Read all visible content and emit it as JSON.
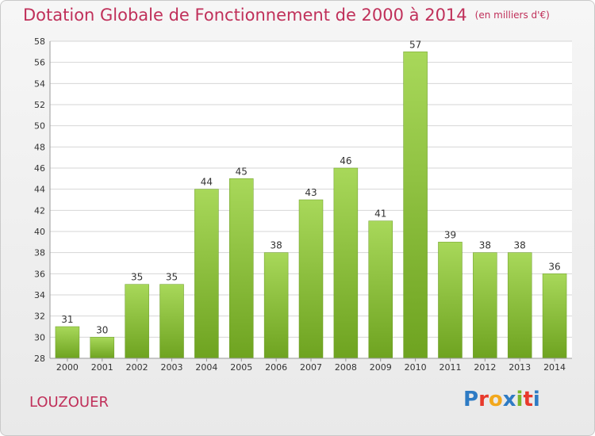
{
  "title": "Dotation Globale de Fonctionnement de 2000 à 2014",
  "subtitle": "(en milliers d'€)",
  "commune": "LOUZOUER",
  "logo": {
    "text": "Proxiti",
    "colors": [
      "#2e7bc4",
      "#e8392b",
      "#f2a81d",
      "#2e7bc4",
      "#7ab72b",
      "#e8392b",
      "#2e7bc4"
    ]
  },
  "chart_data": {
    "type": "bar",
    "categories": [
      "2000",
      "2001",
      "2002",
      "2003",
      "2004",
      "2005",
      "2006",
      "2007",
      "2008",
      "2009",
      "2010",
      "2011",
      "2012",
      "2013",
      "2014"
    ],
    "values": [
      31,
      30,
      35,
      35,
      44,
      45,
      38,
      43,
      46,
      41,
      57,
      39,
      38,
      38,
      36
    ],
    "data_labels": [
      "31",
      "30",
      "35",
      "35",
      "44",
      "45",
      "38",
      "43",
      "46",
      "41",
      "57",
      "39",
      "38",
      "38",
      "36"
    ],
    "ylim": [
      28,
      58
    ],
    "yticks": [
      "28",
      "30",
      "32",
      "34",
      "36",
      "38",
      "40",
      "42",
      "44",
      "46",
      "48",
      "50",
      "52",
      "54",
      "56",
      "58"
    ],
    "grid": true,
    "bar_color_top": "#a8d85a",
    "bar_color_bottom": "#6ea320"
  }
}
